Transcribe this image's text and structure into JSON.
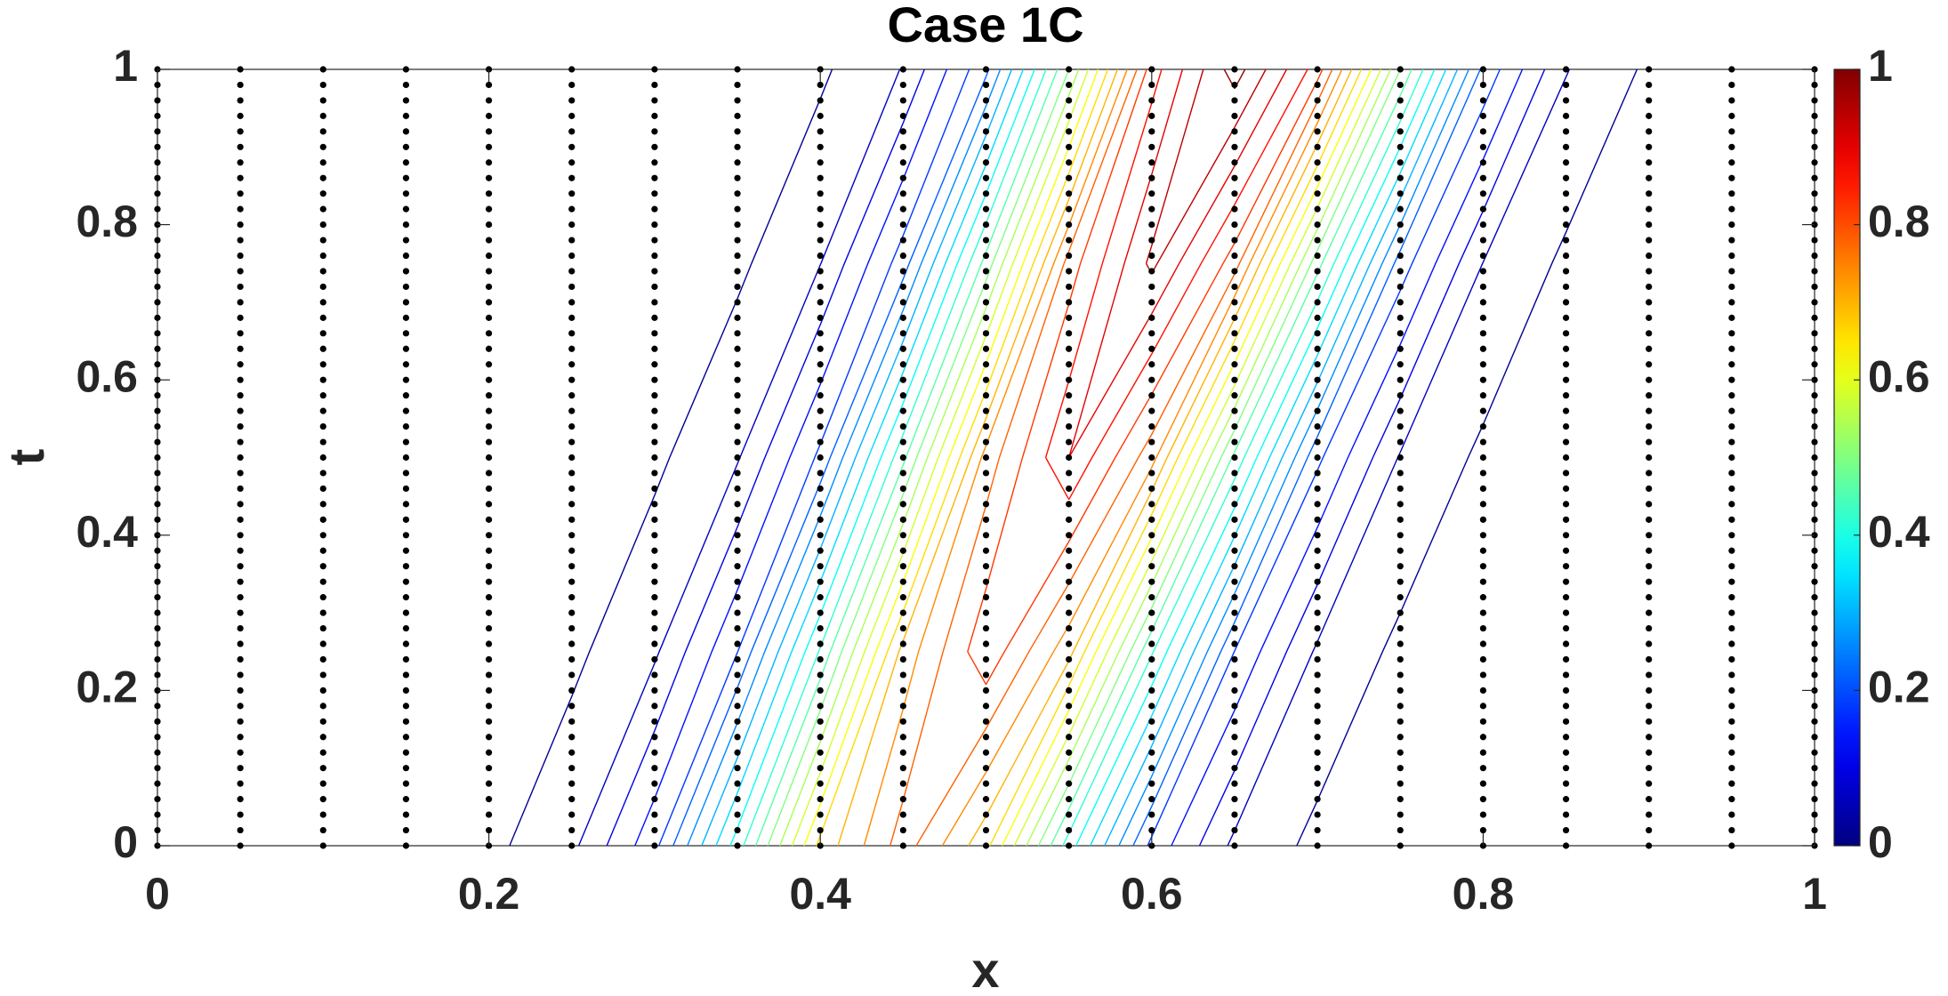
{
  "chart_data": {
    "type": "contour",
    "title": "Case 1C",
    "xlabel": "x",
    "ylabel": "t",
    "xlim": [
      0,
      1
    ],
    "ylim": [
      0,
      1
    ],
    "xticks": [
      0,
      0.2,
      0.4,
      0.6,
      0.8,
      1
    ],
    "yticks": [
      0,
      0.2,
      0.4,
      0.6,
      0.8,
      1
    ],
    "colormap": "jet",
    "clim": [
      0,
      1
    ],
    "cticks": [
      0,
      0.2,
      0.4,
      0.6,
      0.8,
      1
    ],
    "point_color": "#000000",
    "grid_x": [
      0,
      0.05,
      0.1,
      0.15,
      0.2,
      0.25,
      0.3,
      0.35,
      0.4,
      0.45,
      0.5,
      0.55,
      0.6,
      0.65,
      0.7,
      0.75,
      0.8,
      0.85,
      0.9,
      0.95,
      1
    ],
    "grid_t": [
      0,
      0.25,
      0.5,
      0.75,
      1
    ],
    "z": [
      [
        0,
        0,
        0,
        0.002,
        0.01,
        0.05,
        0.168,
        0.4,
        0.673,
        0.8,
        0.673,
        0.4,
        0.168,
        0.05,
        0.01,
        0.002,
        0,
        0,
        0,
        0,
        0
      ],
      [
        0,
        0,
        0,
        0,
        0.002,
        0.011,
        0.053,
        0.179,
        0.425,
        0.715,
        0.85,
        0.715,
        0.425,
        0.179,
        0.053,
        0.011,
        0.002,
        0,
        0,
        0,
        0
      ],
      [
        0,
        0,
        0,
        0,
        0,
        0.002,
        0.012,
        0.056,
        0.189,
        0.45,
        0.757,
        0.9,
        0.757,
        0.45,
        0.189,
        0.056,
        0.012,
        0.002,
        0,
        0,
        0
      ],
      [
        0,
        0,
        0,
        0,
        0,
        0,
        0.002,
        0.012,
        0.059,
        0.2,
        0.475,
        0.799,
        0.95,
        0.799,
        0.475,
        0.2,
        0.059,
        0.012,
        0.002,
        0,
        0
      ],
      [
        0,
        0,
        0,
        0,
        0,
        0,
        0,
        0.002,
        0.013,
        0.062,
        0.21,
        0.5,
        0.841,
        1,
        0.841,
        0.5,
        0.21,
        0.062,
        0.013,
        0.002,
        0
      ]
    ],
    "levels": [
      0.02,
      0.06,
      0.1,
      0.14,
      0.18,
      0.22,
      0.26,
      0.3,
      0.34,
      0.38,
      0.42,
      0.46,
      0.5,
      0.54,
      0.58,
      0.62,
      0.66,
      0.7,
      0.74,
      0.78,
      0.82,
      0.86,
      0.9,
      0.94,
      0.98
    ],
    "points_t": [
      0,
      0.02,
      0.04,
      0.06,
      0.08,
      0.1,
      0.12,
      0.14,
      0.16,
      0.18,
      0.2,
      0.22,
      0.24,
      0.26,
      0.28,
      0.3,
      0.32,
      0.34,
      0.36,
      0.38,
      0.4,
      0.42,
      0.44,
      0.46,
      0.48,
      0.5,
      0.52,
      0.54,
      0.56,
      0.58,
      0.6,
      0.62,
      0.64,
      0.66,
      0.68,
      0.7,
      0.72,
      0.74,
      0.76,
      0.78,
      0.8,
      0.82,
      0.84,
      0.86,
      0.88,
      0.9,
      0.92,
      0.94,
      0.96,
      0.98,
      1
    ]
  }
}
